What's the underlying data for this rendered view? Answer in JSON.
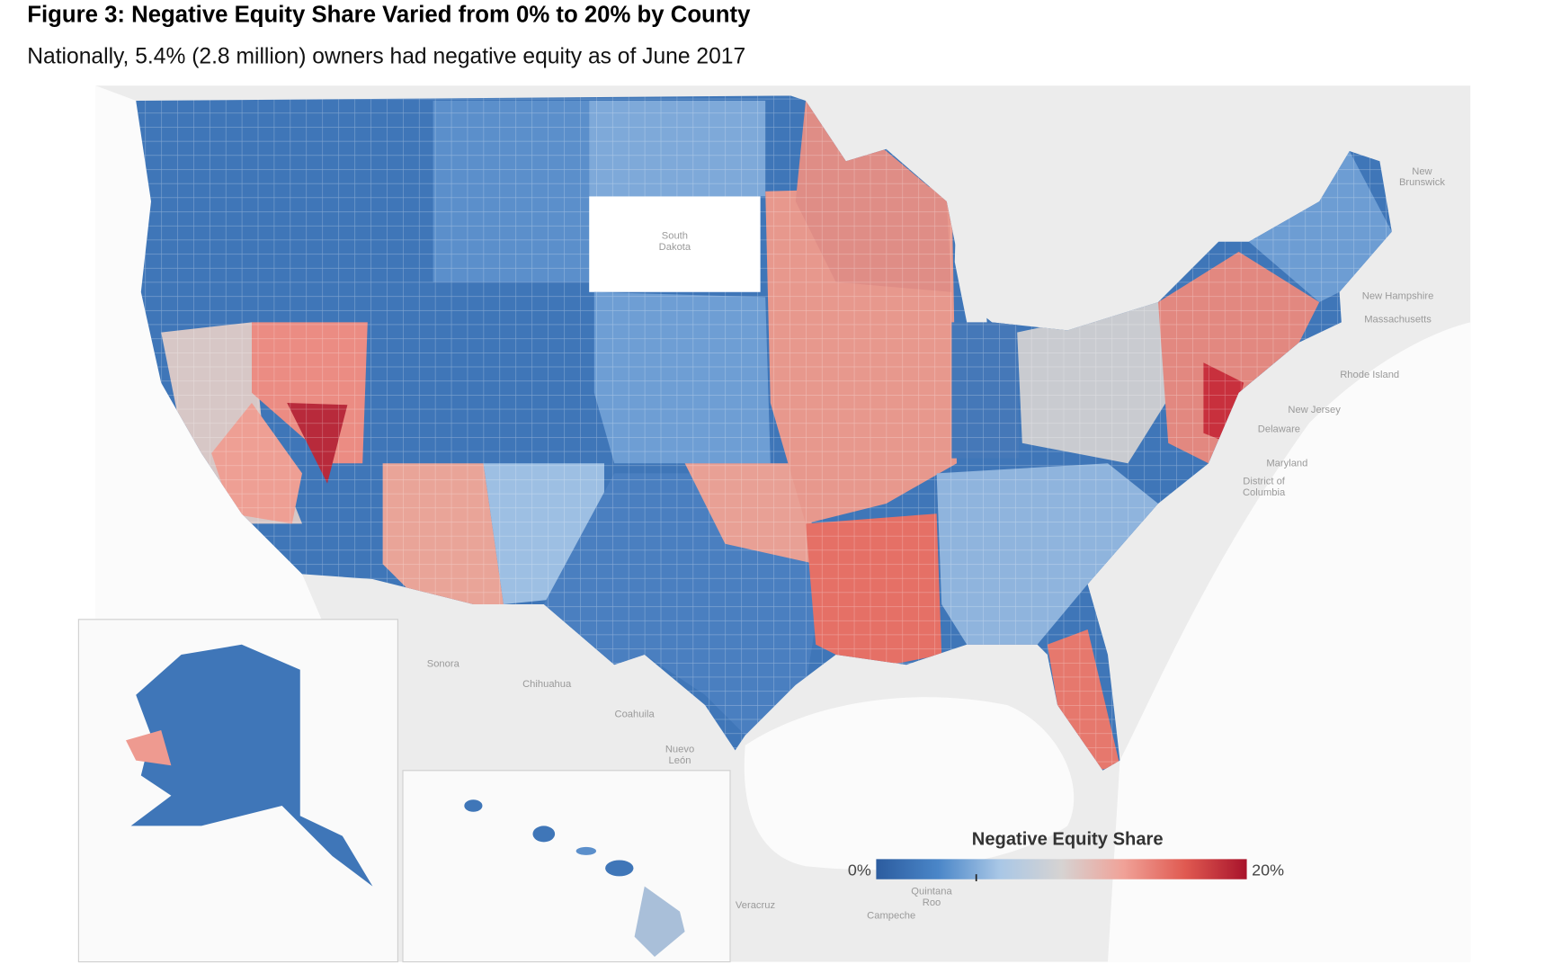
{
  "header": {
    "title": "Figure 3: Negative Equity Share Varied from 0% to 20% by County",
    "subtitle": "Nationally, 5.4% (2.8 million) owners had negative equity as of June 2017"
  },
  "legend": {
    "title": "Negative Equity Share",
    "range": [
      0,
      20
    ],
    "ticks": [
      {
        "value": 0,
        "label": "0%"
      },
      {
        "value": 20,
        "label": "20%"
      }
    ],
    "marker": 5.4,
    "colors": [
      "#2c5c9f",
      "#4a86c8",
      "#a9c7e6",
      "#d6d3d2",
      "#f0a298",
      "#e05a51",
      "#a8132b"
    ]
  },
  "places": [
    {
      "lines": [
        "South",
        "Dakota"
      ]
    },
    {
      "lines": [
        "New",
        "Brunswick"
      ]
    },
    {
      "lines": [
        "New Hampshire"
      ]
    },
    {
      "lines": [
        "Massachusetts"
      ]
    },
    {
      "lines": [
        "Rhode Island"
      ]
    },
    {
      "lines": [
        "New Jersey"
      ]
    },
    {
      "lines": [
        "Delaware"
      ]
    },
    {
      "lines": [
        "Maryland"
      ]
    },
    {
      "lines": [
        "District of",
        "Columbia"
      ]
    },
    {
      "lines": [
        "Sonora"
      ]
    },
    {
      "lines": [
        "Chihuahua"
      ]
    },
    {
      "lines": [
        "Coahuila"
      ]
    },
    {
      "lines": [
        "Nuevo",
        "León"
      ]
    },
    {
      "lines": [
        "Quintana",
        "Roo"
      ]
    },
    {
      "lines": [
        "Campeche"
      ]
    },
    {
      "lines": [
        "Veracruz"
      ]
    }
  ]
}
